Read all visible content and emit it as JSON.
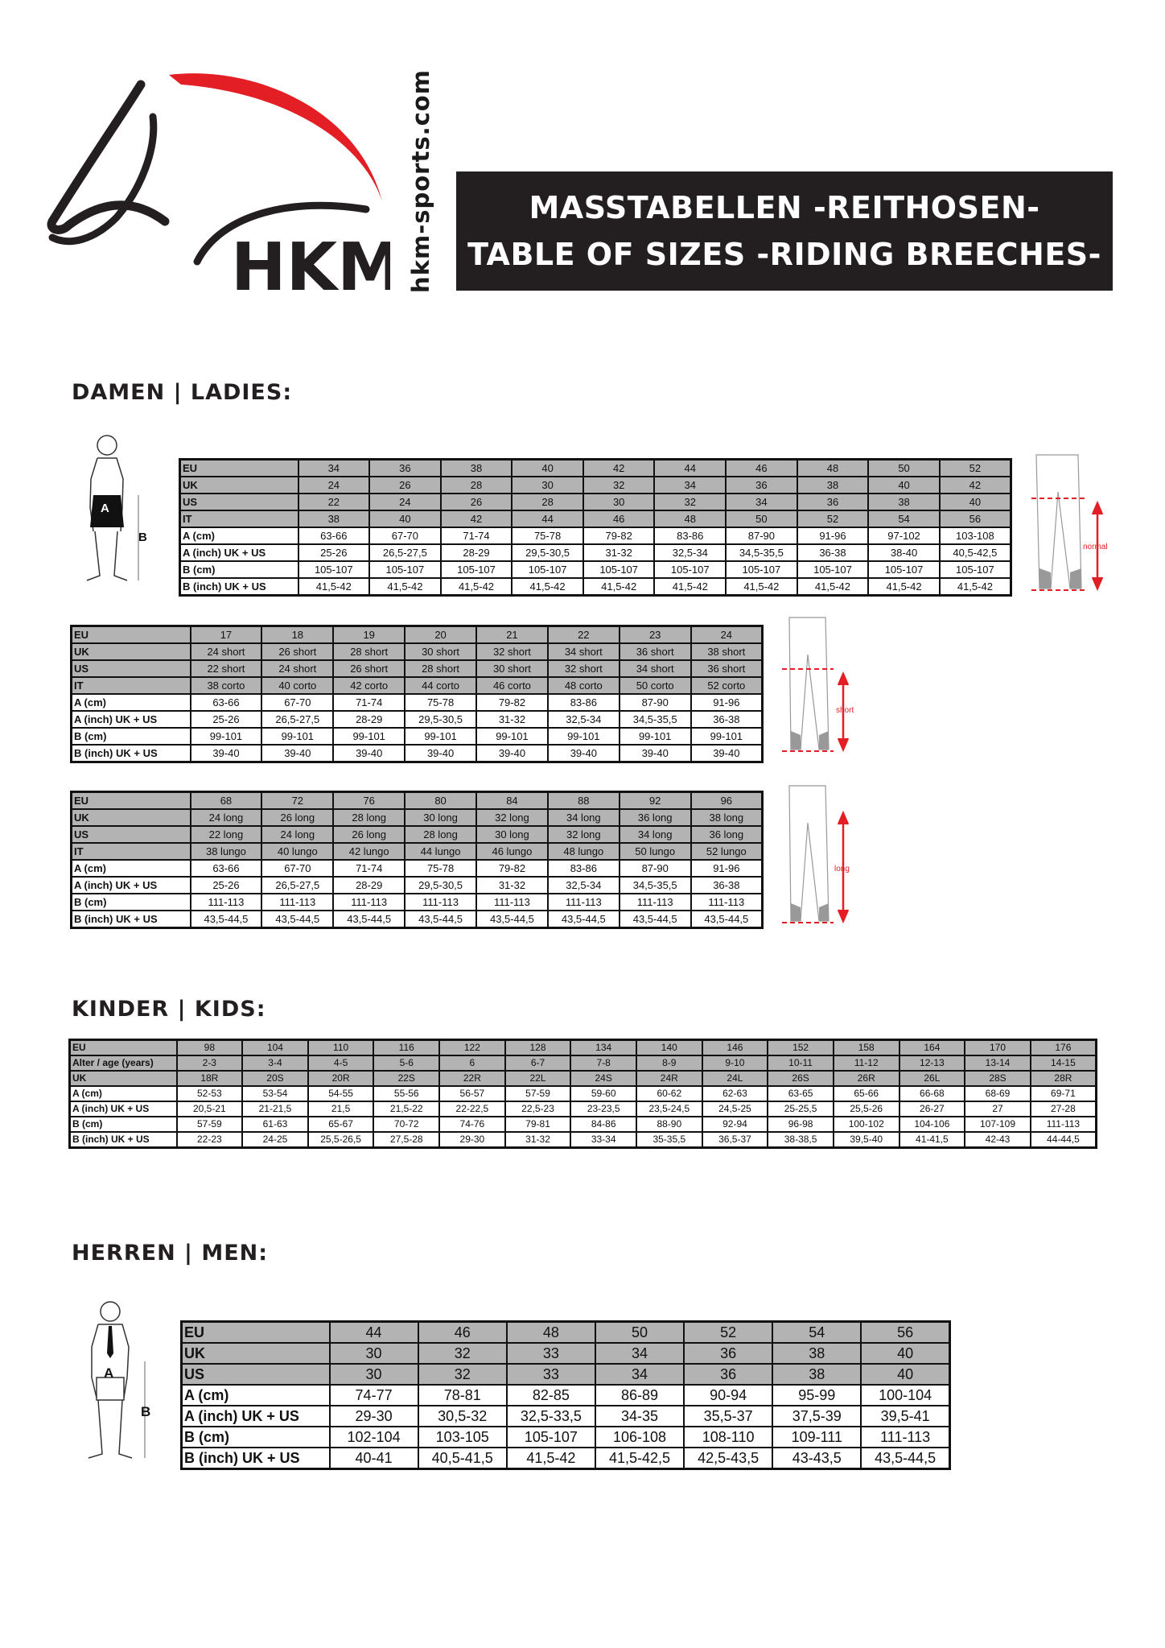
{
  "brand": {
    "logo_text": "HKM",
    "website": "hkm-sports.com",
    "colors": {
      "red": "#e31e24",
      "dark": "#231f20",
      "header_gray": "#b3b3b3"
    }
  },
  "title": {
    "line1": "MASSTABELLEN -REITHOSEN-",
    "line2": "TABLE OF SIZES -RIDING BREECHES-"
  },
  "sections": {
    "ladies": "DAMEN | LADIES:",
    "kids": "KINDER | KIDS:",
    "men": "HERREN | MEN:"
  },
  "figure_labels": {
    "a": "A",
    "b": "B"
  },
  "pants_labels": {
    "normal": "normal",
    "short": "short",
    "long": "long"
  },
  "tables": {
    "ladies_normal": {
      "header_rows": 4,
      "rows": [
        [
          "EU",
          "34",
          "36",
          "38",
          "40",
          "42",
          "44",
          "46",
          "48",
          "50",
          "52"
        ],
        [
          "UK",
          "24",
          "26",
          "28",
          "30",
          "32",
          "34",
          "36",
          "38",
          "40",
          "42"
        ],
        [
          "US",
          "22",
          "24",
          "26",
          "28",
          "30",
          "32",
          "34",
          "36",
          "38",
          "40"
        ],
        [
          "IT",
          "38",
          "40",
          "42",
          "44",
          "46",
          "48",
          "50",
          "52",
          "54",
          "56"
        ],
        [
          "A (cm)",
          "63-66",
          "67-70",
          "71-74",
          "75-78",
          "79-82",
          "83-86",
          "87-90",
          "91-96",
          "97-102",
          "103-108"
        ],
        [
          "A (inch) UK + US",
          "25-26",
          "26,5-27,5",
          "28-29",
          "29,5-30,5",
          "31-32",
          "32,5-34",
          "34,5-35,5",
          "36-38",
          "38-40",
          "40,5-42,5"
        ],
        [
          "B (cm)",
          "105-107",
          "105-107",
          "105-107",
          "105-107",
          "105-107",
          "105-107",
          "105-107",
          "105-107",
          "105-107",
          "105-107"
        ],
        [
          "B (inch) UK + US",
          "41,5-42",
          "41,5-42",
          "41,5-42",
          "41,5-42",
          "41,5-42",
          "41,5-42",
          "41,5-42",
          "41,5-42",
          "41,5-42",
          "41,5-42"
        ]
      ]
    },
    "ladies_short": {
      "header_rows": 4,
      "rows": [
        [
          "EU",
          "17",
          "18",
          "19",
          "20",
          "21",
          "22",
          "23",
          "24"
        ],
        [
          "UK",
          "24 short",
          "26 short",
          "28 short",
          "30 short",
          "32 short",
          "34 short",
          "36 short",
          "38 short"
        ],
        [
          "US",
          "22 short",
          "24 short",
          "26 short",
          "28 short",
          "30 short",
          "32 short",
          "34 short",
          "36 short"
        ],
        [
          "IT",
          "38 corto",
          "40 corto",
          "42 corto",
          "44 corto",
          "46 corto",
          "48 corto",
          "50 corto",
          "52 corto"
        ],
        [
          "A (cm)",
          "63-66",
          "67-70",
          "71-74",
          "75-78",
          "79-82",
          "83-86",
          "87-90",
          "91-96"
        ],
        [
          "A (inch) UK + US",
          "25-26",
          "26,5-27,5",
          "28-29",
          "29,5-30,5",
          "31-32",
          "32,5-34",
          "34,5-35,5",
          "36-38"
        ],
        [
          "B (cm)",
          "99-101",
          "99-101",
          "99-101",
          "99-101",
          "99-101",
          "99-101",
          "99-101",
          "99-101"
        ],
        [
          "B (inch) UK + US",
          "39-40",
          "39-40",
          "39-40",
          "39-40",
          "39-40",
          "39-40",
          "39-40",
          "39-40"
        ]
      ]
    },
    "ladies_long": {
      "header_rows": 4,
      "rows": [
        [
          "EU",
          "68",
          "72",
          "76",
          "80",
          "84",
          "88",
          "92",
          "96"
        ],
        [
          "UK",
          "24 long",
          "26 long",
          "28 long",
          "30 long",
          "32 long",
          "34 long",
          "36 long",
          "38 long"
        ],
        [
          "US",
          "22 long",
          "24 long",
          "26 long",
          "28 long",
          "30 long",
          "32 long",
          "34 long",
          "36 long"
        ],
        [
          "IT",
          "38 lungo",
          "40 lungo",
          "42 lungo",
          "44 lungo",
          "46 lungo",
          "48 lungo",
          "50 lungo",
          "52 lungo"
        ],
        [
          "A (cm)",
          "63-66",
          "67-70",
          "71-74",
          "75-78",
          "79-82",
          "83-86",
          "87-90",
          "91-96"
        ],
        [
          "A (inch) UK + US",
          "25-26",
          "26,5-27,5",
          "28-29",
          "29,5-30,5",
          "31-32",
          "32,5-34",
          "34,5-35,5",
          "36-38"
        ],
        [
          "B (cm)",
          "111-113",
          "111-113",
          "111-113",
          "111-113",
          "111-113",
          "111-113",
          "111-113",
          "111-113"
        ],
        [
          "B (inch) UK + US",
          "43,5-44,5",
          "43,5-44,5",
          "43,5-44,5",
          "43,5-44,5",
          "43,5-44,5",
          "43,5-44,5",
          "43,5-44,5",
          "43,5-44,5"
        ]
      ]
    },
    "kids": {
      "header_rows": 3,
      "rows": [
        [
          "EU",
          "98",
          "104",
          "110",
          "116",
          "122",
          "128",
          "134",
          "140",
          "146",
          "152",
          "158",
          "164",
          "170",
          "176"
        ],
        [
          "Alter / age (years)",
          "2-3",
          "3-4",
          "4-5",
          "5-6",
          "6",
          "6-7",
          "7-8",
          "8-9",
          "9-10",
          "10-11",
          "11-12",
          "12-13",
          "13-14",
          "14-15"
        ],
        [
          "UK",
          "18R",
          "20S",
          "20R",
          "22S",
          "22R",
          "22L",
          "24S",
          "24R",
          "24L",
          "26S",
          "26R",
          "26L",
          "28S",
          "28R"
        ],
        [
          "A (cm)",
          "52-53",
          "53-54",
          "54-55",
          "55-56",
          "56-57",
          "57-59",
          "59-60",
          "60-62",
          "62-63",
          "63-65",
          "65-66",
          "66-68",
          "68-69",
          "69-71"
        ],
        [
          "A (inch) UK + US",
          "20,5-21",
          "21-21,5",
          "21,5",
          "21,5-22",
          "22-22,5",
          "22,5-23",
          "23-23,5",
          "23,5-24,5",
          "24,5-25",
          "25-25,5",
          "25,5-26",
          "26-27",
          "27",
          "27-28"
        ],
        [
          "B (cm)",
          "57-59",
          "61-63",
          "65-67",
          "70-72",
          "74-76",
          "79-81",
          "84-86",
          "88-90",
          "92-94",
          "96-98",
          "100-102",
          "104-106",
          "107-109",
          "111-113"
        ],
        [
          "B (inch) UK + US",
          "22-23",
          "24-25",
          "25,5-26,5",
          "27,5-28",
          "29-30",
          "31-32",
          "33-34",
          "35-35,5",
          "36,5-37",
          "38-38,5",
          "39,5-40",
          "41-41,5",
          "42-43",
          "44-44,5"
        ]
      ]
    },
    "men": {
      "header_rows": 3,
      "rows": [
        [
          "EU",
          "44",
          "46",
          "48",
          "50",
          "52",
          "54",
          "56"
        ],
        [
          "UK",
          "30",
          "32",
          "33",
          "34",
          "36",
          "38",
          "40"
        ],
        [
          "US",
          "30",
          "32",
          "33",
          "34",
          "36",
          "38",
          "40"
        ],
        [
          "A (cm)",
          "74-77",
          "78-81",
          "82-85",
          "86-89",
          "90-94",
          "95-99",
          "100-104"
        ],
        [
          "A (inch) UK + US",
          "29-30",
          "30,5-32",
          "32,5-33,5",
          "34-35",
          "35,5-37",
          "37,5-39",
          "39,5-41"
        ],
        [
          "B (cm)",
          "102-104",
          "103-105",
          "105-107",
          "106-108",
          "108-110",
          "109-111",
          "111-113"
        ],
        [
          "B (inch) UK + US",
          "40-41",
          "40,5-41,5",
          "41,5-42",
          "41,5-42,5",
          "42,5-43,5",
          "43-43,5",
          "43,5-44,5"
        ]
      ]
    }
  }
}
